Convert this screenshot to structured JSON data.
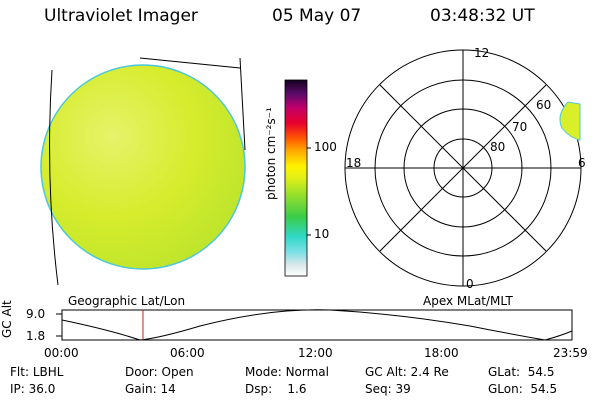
{
  "header": {
    "instrument": "Ultraviolet Imager",
    "date": "05 May 07",
    "time": "03:48:32 UT"
  },
  "colorbar": {
    "label": "photon cm⁻²s⁻¹",
    "tick_100": "100",
    "tick_10": "10"
  },
  "left_panel": {
    "caption": "Geographic Lat/Lon"
  },
  "right_panel": {
    "caption": "Apex MLat/MLT",
    "mlt_labels": {
      "top": "12",
      "left": "18",
      "right": "6",
      "bottom": "0"
    },
    "lat_labels": [
      "60",
      "70",
      "80"
    ]
  },
  "altitude_plot": {
    "ylabel": "GC Alt",
    "y_ticks": [
      "9.0",
      "1.8"
    ],
    "x_ticks": [
      "00:00",
      "06:00",
      "12:00",
      "18:00",
      "23:59"
    ]
  },
  "status": {
    "row1": [
      {
        "label": "Flt:",
        "value": "LBHL"
      },
      {
        "label": "Door:",
        "value": "Open"
      },
      {
        "label": "Mode:",
        "value": "Normal"
      },
      {
        "label": "GC Alt:",
        "value": "2.4 Re"
      },
      {
        "label": "GLat:",
        "value": "54.5"
      }
    ],
    "row2": [
      {
        "label": "IP:",
        "value": "36.0"
      },
      {
        "label": "Gain:",
        "value": "14"
      },
      {
        "label": "Dsp:",
        "value": "1.6"
      },
      {
        "label": "Seq:",
        "value": "39"
      },
      {
        "label": "GLon:",
        "value": "54.5"
      }
    ]
  },
  "colors": {
    "disk_fill": "#d9ef2a",
    "disk_edge": "#4fc8d8",
    "marker": "#cc2222"
  }
}
